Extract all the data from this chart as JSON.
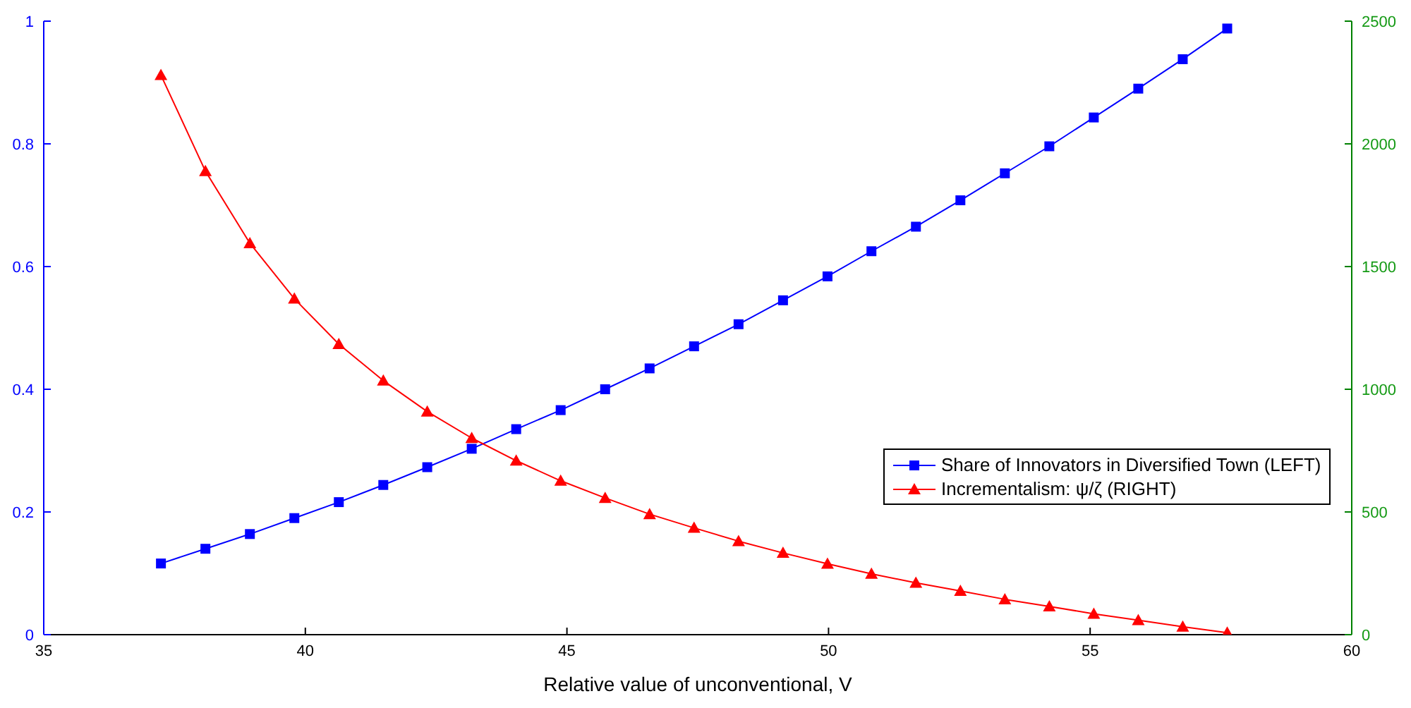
{
  "chart_data": {
    "type": "line",
    "xlabel": "Relative value of unconventional, V",
    "x": [
      37.24,
      38.09,
      38.94,
      39.79,
      40.64,
      41.49,
      42.33,
      43.18,
      44.03,
      44.88,
      45.73,
      46.58,
      47.43,
      48.28,
      49.13,
      49.98,
      50.82,
      51.67,
      52.52,
      53.37,
      54.22,
      55.07,
      55.92,
      56.77,
      57.62
    ],
    "series": [
      {
        "name": "Share of Innovators in Diversified Town (LEFT)",
        "color": "#0000ff",
        "marker": "square",
        "axis": "y",
        "values": [
          0.116,
          0.14,
          0.164,
          0.19,
          0.216,
          0.244,
          0.273,
          0.303,
          0.335,
          0.366,
          0.4,
          0.434,
          0.47,
          0.506,
          0.545,
          0.584,
          0.625,
          0.665,
          0.708,
          0.752,
          0.796,
          0.843,
          0.89,
          0.938,
          0.988
        ]
      },
      {
        "name": "Incrementalism: ψ/ζ (RIGHT)",
        "color": "#ff0000",
        "marker": "triangle",
        "axis": "y2",
        "values": [
          2280,
          1889,
          1595,
          1369,
          1184,
          1035,
          909,
          801,
          709,
          627,
          557,
          491,
          435,
          381,
          333,
          289,
          248,
          211,
          178,
          144,
          115,
          85,
          59,
          32,
          8
        ]
      }
    ],
    "xlim": [
      35,
      60
    ],
    "xticks": [
      35,
      40,
      45,
      50,
      55,
      60
    ],
    "ylim": [
      0,
      1
    ],
    "yticks": [
      0,
      0.2,
      0.4,
      0.6,
      0.8,
      1
    ],
    "y2lim": [
      0,
      2500
    ],
    "y2ticks": [
      0,
      500,
      1000,
      1500,
      2000,
      2500
    ],
    "legend": "right",
    "line_style": "solid"
  }
}
